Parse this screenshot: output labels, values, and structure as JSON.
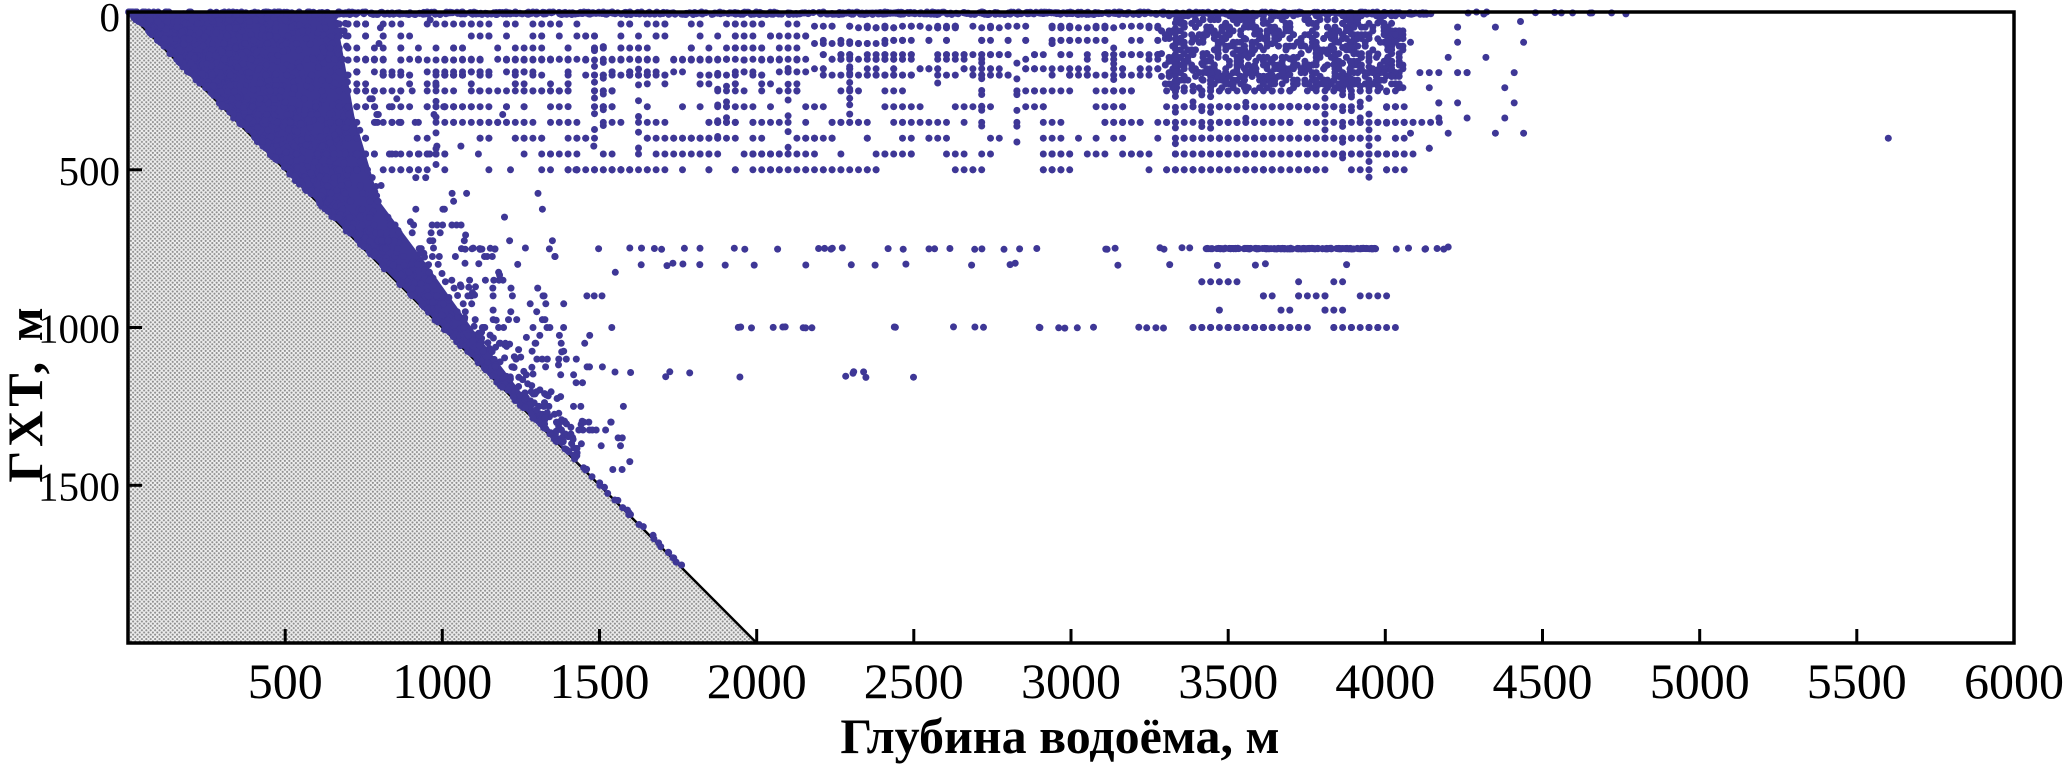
{
  "figure": {
    "kind": "scientific scatter plot (publication style)",
    "background": "#ffffff"
  },
  "chart_data": {
    "type": "scatter",
    "title": "",
    "xlabel": "Глубина водоёма, м",
    "ylabel": "ГХТ, м",
    "xlim": [
      0,
      6000
    ],
    "ylim": [
      0,
      2000
    ],
    "y_axis_inverted": true,
    "grid": false,
    "legend": false,
    "x_ticks": [
      500,
      1000,
      1500,
      2000,
      2500,
      3000,
      3500,
      4000,
      4500,
      5000,
      5500,
      6000
    ],
    "y_ticks": [
      0,
      500,
      1000,
      1500
    ],
    "point_color": "#3e3796",
    "point_radius_px": 3.5,
    "axis_color": "#000000",
    "excluded_region": {
      "shape": "triangle",
      "meaning": "zone where trawl horizon (ГХТ) would exceed bottom depth — no observations possible",
      "vertices_data": [
        [
          0,
          0
        ],
        [
          2000,
          2000
        ],
        [
          0,
          2000
        ]
      ],
      "fill_style": "fine gray halftone dot pattern",
      "fill_base": "#efefef",
      "fill_dot": "#8d8d8d",
      "edge_color": "#000000"
    },
    "diagonal_density_band": {
      "meaning": "near-bottom trawling: dense mass of points hugging the 1:1 line (ГХТ ≈ глубина водоёма)",
      "color": "#3e3796",
      "upper_boundary_data": [
        [
          0,
          0
        ],
        [
          660,
          0
        ],
        [
          720,
          330
        ],
        [
          800,
          600
        ],
        [
          950,
          800
        ],
        [
          1100,
          1010
        ],
        [
          1250,
          1205
        ],
        [
          1400,
          1395
        ],
        [
          1448,
          1448
        ]
      ]
    },
    "distribution_summary": "Surface tows form a nearly solid line at ГХТ=0 from ~300 to ~4800 m bottom depth. Mid-water points are quantized into horizontal rows every ~50 m down to ~500 m for bottom depths 700–4100 m, with a very dense cloud at depths 3300–4050 m. Long sparse rows occur at ГХТ≈750 m (solid segment at 3450–3950 m), ≈800 m, ≈850–950 m, ≈1000 m and ≈1150 m. Sparse single points follow the 1:1 line down to ~1750 m. Lower-right area is empty.",
    "seed": 13,
    "point_regions": [
      {
        "name": "solid-apex-wedge",
        "kind": "wedge",
        "count": 800,
        "x": [
          0,
          700
        ],
        "qy": 6
      },
      {
        "name": "diagonal-band-scatter",
        "kind": "band",
        "count": 620,
        "x": [
          150,
          1450
        ],
        "mean": 60
      },
      {
        "name": "diagonal-sparse-tail",
        "kind": "diag",
        "count": 26,
        "x": [
          1440,
          1770
        ],
        "off": 12
      },
      {
        "name": "above-band-halo",
        "kind": "halo",
        "count": 330,
        "x": [
          300,
          1600
        ],
        "mean": 240,
        "qy": 25
      },
      {
        "name": "surface-line",
        "kind": "hline",
        "count": 1000,
        "x": [
          260,
          4150
        ],
        "y": 3,
        "jitter": 5
      },
      {
        "name": "surface-line-tail",
        "kind": "hline",
        "count": 14,
        "x": [
          4150,
          4800
        ],
        "y": 3,
        "jitter": 4
      },
      {
        "name": "upper-left-fill",
        "kind": "uniform",
        "count": 270,
        "x": [
          650,
          2150
        ],
        "y": [
          15,
          225
        ],
        "qx": 28,
        "qy": 38
      },
      {
        "name": "upper-mid-fill",
        "kind": "uniform",
        "count": 180,
        "x": [
          2150,
          3290
        ],
        "y": [
          15,
          205
        ],
        "qx": 28,
        "qy": 45
      },
      {
        "name": "left-rows",
        "kind": "rows",
        "count": 470,
        "x": [
          650,
          2160
        ],
        "rows": [
          150,
          200,
          250,
          300,
          350,
          400,
          450,
          500
        ],
        "qx": 28,
        "run": 0.45
      },
      {
        "name": "mid-rows",
        "kind": "rows",
        "count": 290,
        "x": [
          2160,
          3290
        ],
        "rows": [
          50,
          100,
          150,
          200,
          250,
          300,
          350,
          400,
          450,
          500
        ],
        "qx": 28,
        "run": 0.45
      },
      {
        "name": "mid-columns",
        "kind": "cols",
        "cols": 14,
        "x": [
          950,
          3250
        ],
        "y0": [
          60,
          260
        ],
        "step": 50,
        "len": [
          3,
          6
        ],
        "qx": 28
      },
      {
        "name": "cluster-core",
        "kind": "uniform",
        "count": 800,
        "x": [
          3290,
          4060
        ],
        "y": [
          8,
          240
        ],
        "qx": 12,
        "qy": 12
      },
      {
        "name": "cluster-rows",
        "kind": "rows",
        "count": 400,
        "x": [
          3290,
          4060
        ],
        "rows": [
          250,
          300,
          350,
          400,
          450,
          500
        ],
        "qx": 28,
        "run": 0.58
      },
      {
        "name": "cluster-columns",
        "kind": "cols",
        "cols": 20,
        "x": [
          3290,
          4040
        ],
        "y0": [
          30,
          220
        ],
        "step": 50,
        "len": [
          3,
          8
        ],
        "qx": 28
      },
      {
        "name": "right-sparse",
        "kind": "uniform",
        "count": 30,
        "x": [
          4060,
          4480
        ],
        "y": [
          15,
          470
        ],
        "qx": 30,
        "qy": 48
      },
      {
        "name": "row-750-left",
        "kind": "hline",
        "count": 46,
        "x": [
          880,
          3430
        ],
        "y": 750,
        "jitter": 3
      },
      {
        "name": "row-750-dense",
        "kind": "hline",
        "count": 170,
        "x": [
          3430,
          3970
        ],
        "y": 750,
        "jitter": 1
      },
      {
        "name": "row-750-tail",
        "kind": "hline",
        "count": 6,
        "x": [
          3970,
          4200
        ],
        "y": 750,
        "jitter": 2
      },
      {
        "name": "row-800",
        "kind": "hline",
        "count": 22,
        "x": [
          1040,
          4280
        ],
        "y": 800,
        "jitter": 4
      },
      {
        "name": "rows-850-950",
        "kind": "rows",
        "count": 30,
        "x": [
          3380,
          3970
        ],
        "rows": [
          855,
          900,
          945
        ],
        "qx": 28,
        "run": 0.4
      },
      {
        "name": "row-1000-left",
        "kind": "hline",
        "count": 24,
        "x": [
          1850,
          3330
        ],
        "y": 1000,
        "jitter": 2
      },
      {
        "name": "row-1000-dense",
        "kind": "rows",
        "count": 62,
        "x": [
          3330,
          3970
        ],
        "rows": [
          1000
        ],
        "qx": 28,
        "run": 0.5
      },
      {
        "name": "row-1150",
        "kind": "hline",
        "count": 12,
        "x": [
          1480,
          2740
        ],
        "y": 1150,
        "jitter": 10
      }
    ],
    "isolated_points": [
      [
        5600,
        400
      ],
      [
        4430,
        30
      ],
      [
        4200,
        745
      ]
    ]
  }
}
